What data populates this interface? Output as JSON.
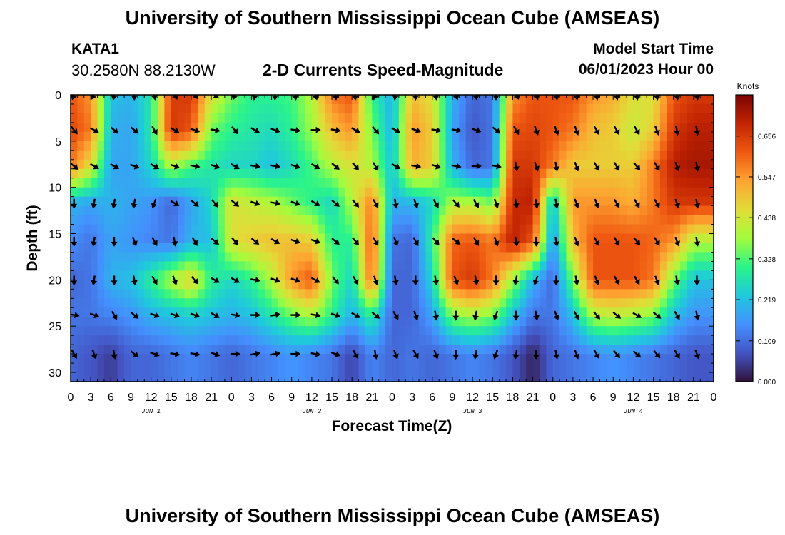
{
  "header": {
    "title": "University of Southern Mississippi Ocean Cube (AMSEAS)",
    "station_id": "KATA1",
    "station_coords": "30.2580N  88.2130W",
    "plot_title": "2-D Currents Speed-Magnitude",
    "model_start_label": "Model Start Time",
    "model_start_value": "06/01/2023 Hour 00"
  },
  "footer": {
    "title": "University of Southern Mississippi Ocean Cube (AMSEAS)"
  },
  "chart_data": {
    "type": "heatmap",
    "title": "2-D Currents Speed-Magnitude",
    "xlabel": "Forecast Time(Z)",
    "ylabel": "Depth (ft)",
    "xlim": [
      0,
      96
    ],
    "ylim": [
      31,
      0
    ],
    "x_tick_labels": [
      "0",
      "3",
      "6",
      "9",
      "12",
      "15",
      "18",
      "21",
      "0",
      "3",
      "6",
      "9",
      "12",
      "15",
      "18",
      "21",
      "0",
      "3",
      "6",
      "9",
      "12",
      "15",
      "18",
      "21",
      "0",
      "3",
      "6",
      "9",
      "12",
      "15",
      "18",
      "21",
      "0"
    ],
    "y_ticks": [
      0,
      5,
      10,
      15,
      20,
      25,
      30
    ],
    "day_labels": [
      "JUN 1",
      "JUN 2",
      "JUN 3",
      "JUN 4"
    ],
    "colorbar": {
      "title": "Knots",
      "ticks": [
        "0.000",
        "0.109",
        "0.219",
        "0.328",
        "0.438",
        "0.547",
        "0.656"
      ],
      "range": [
        0,
        0.766
      ],
      "stops": [
        "#30123b",
        "#4454c4",
        "#4490fe",
        "#1fc9dd",
        "#2af48a",
        "#a4fc3c",
        "#e2dc38",
        "#fea331",
        "#ef5911",
        "#c22402",
        "#7a0403"
      ]
    },
    "depths_ft": [
      0,
      3.8,
      7.7,
      11.7,
      15.8,
      20.0,
      23.8,
      28.0
    ],
    "times_h": [
      0,
      3,
      6,
      9,
      12,
      15,
      18,
      21,
      24,
      27,
      30,
      33,
      36,
      39,
      42,
      45,
      48,
      51,
      54,
      57,
      60,
      63,
      66,
      69,
      72,
      75,
      78,
      81,
      84,
      87,
      90,
      93
    ],
    "speed_knots": [
      [
        0.62,
        0.55,
        0.22,
        0.2,
        0.28,
        0.65,
        0.66,
        0.45,
        0.35,
        0.3,
        0.3,
        0.32,
        0.4,
        0.58,
        0.62,
        0.3,
        0.2,
        0.5,
        0.45,
        0.2,
        0.1,
        0.12,
        0.55,
        0.62,
        0.62,
        0.62,
        0.55,
        0.52,
        0.45,
        0.45,
        0.62,
        0.66
      ],
      [
        0.64,
        0.58,
        0.2,
        0.18,
        0.28,
        0.66,
        0.62,
        0.35,
        0.3,
        0.28,
        0.26,
        0.3,
        0.38,
        0.5,
        0.55,
        0.35,
        0.2,
        0.55,
        0.48,
        0.18,
        0.08,
        0.12,
        0.62,
        0.64,
        0.62,
        0.58,
        0.5,
        0.48,
        0.42,
        0.48,
        0.66,
        0.7
      ],
      [
        0.58,
        0.45,
        0.18,
        0.18,
        0.25,
        0.4,
        0.32,
        0.28,
        0.25,
        0.25,
        0.22,
        0.26,
        0.32,
        0.4,
        0.45,
        0.4,
        0.22,
        0.52,
        0.48,
        0.2,
        0.1,
        0.12,
        0.66,
        0.66,
        0.58,
        0.48,
        0.48,
        0.48,
        0.48,
        0.58,
        0.7,
        0.72
      ],
      [
        0.2,
        0.18,
        0.2,
        0.18,
        0.16,
        0.1,
        0.18,
        0.25,
        0.45,
        0.42,
        0.4,
        0.35,
        0.3,
        0.25,
        0.4,
        0.58,
        0.2,
        0.2,
        0.25,
        0.4,
        0.4,
        0.35,
        0.68,
        0.7,
        0.2,
        0.55,
        0.55,
        0.55,
        0.52,
        0.58,
        0.66,
        0.66
      ],
      [
        0.15,
        0.12,
        0.18,
        0.16,
        0.14,
        0.12,
        0.2,
        0.22,
        0.45,
        0.48,
        0.5,
        0.5,
        0.48,
        0.3,
        0.3,
        0.62,
        0.12,
        0.1,
        0.3,
        0.6,
        0.62,
        0.58,
        0.7,
        0.62,
        0.15,
        0.5,
        0.62,
        0.62,
        0.62,
        0.6,
        0.55,
        0.4
      ],
      [
        0.1,
        0.12,
        0.2,
        0.22,
        0.3,
        0.4,
        0.48,
        0.3,
        0.25,
        0.3,
        0.4,
        0.55,
        0.62,
        0.35,
        0.25,
        0.6,
        0.1,
        0.1,
        0.25,
        0.62,
        0.66,
        0.58,
        0.38,
        0.2,
        0.1,
        0.35,
        0.62,
        0.62,
        0.62,
        0.58,
        0.35,
        0.22
      ],
      [
        0.12,
        0.12,
        0.14,
        0.16,
        0.2,
        0.22,
        0.24,
        0.22,
        0.2,
        0.22,
        0.28,
        0.35,
        0.4,
        0.3,
        0.2,
        0.3,
        0.1,
        0.1,
        0.18,
        0.36,
        0.4,
        0.36,
        0.22,
        0.12,
        0.12,
        0.22,
        0.4,
        0.42,
        0.4,
        0.36,
        0.22,
        0.16
      ],
      [
        0.1,
        0.08,
        0.05,
        0.1,
        0.1,
        0.12,
        0.14,
        0.12,
        0.1,
        0.12,
        0.14,
        0.16,
        0.14,
        0.12,
        0.06,
        0.14,
        0.1,
        0.12,
        0.1,
        0.12,
        0.14,
        0.12,
        0.08,
        0.02,
        0.1,
        0.12,
        0.14,
        0.16,
        0.14,
        0.12,
        0.1,
        0.08
      ]
    ],
    "arrow_dir_deg": [
      [
        200,
        210,
        190,
        180,
        170,
        150,
        140,
        130,
        200,
        190,
        180,
        170,
        160,
        170,
        180,
        200,
        190,
        180,
        170,
        160,
        170,
        180,
        150,
        160,
        170,
        170,
        170,
        170,
        170,
        170,
        170,
        170
      ],
      [
        140,
        120,
        130,
        130,
        150,
        120,
        110,
        100,
        140,
        120,
        110,
        100,
        90,
        100,
        120,
        140,
        120,
        110,
        100,
        100,
        110,
        130,
        150,
        160,
        160,
        160,
        150,
        150,
        150,
        160,
        170,
        170
      ],
      [
        130,
        120,
        120,
        110,
        120,
        110,
        100,
        110,
        120,
        100,
        100,
        110,
        120,
        130,
        140,
        150,
        120,
        100,
        110,
        100,
        90,
        100,
        170,
        160,
        170,
        160,
        150,
        150,
        140,
        150,
        160,
        170
      ],
      [
        180,
        190,
        190,
        190,
        200,
        120,
        130,
        140,
        130,
        110,
        100,
        110,
        120,
        130,
        140,
        150,
        170,
        160,
        150,
        140,
        150,
        160,
        170,
        170,
        170,
        160,
        160,
        150,
        150,
        150,
        160,
        170
      ],
      [
        180,
        190,
        180,
        160,
        150,
        170,
        150,
        130,
        140,
        130,
        120,
        110,
        110,
        130,
        140,
        150,
        160,
        150,
        140,
        130,
        150,
        160,
        170,
        180,
        170,
        160,
        150,
        150,
        140,
        150,
        160,
        170
      ],
      [
        180,
        190,
        180,
        170,
        150,
        160,
        140,
        120,
        120,
        100,
        110,
        110,
        120,
        140,
        150,
        160,
        170,
        180,
        170,
        160,
        170,
        180,
        190,
        200,
        180,
        170,
        160,
        150,
        150,
        160,
        170,
        180
      ],
      [
        100,
        110,
        150,
        130,
        110,
        110,
        110,
        120,
        100,
        90,
        80,
        90,
        100,
        110,
        120,
        130,
        150,
        160,
        170,
        180,
        190,
        200,
        180,
        170,
        160,
        150,
        140,
        130,
        120,
        130,
        150,
        170
      ],
      [
        150,
        160,
        170,
        130,
        110,
        100,
        100,
        110,
        90,
        80,
        80,
        90,
        100,
        110,
        150,
        170,
        160,
        150,
        160,
        180,
        190,
        200,
        190,
        180,
        170,
        160,
        150,
        140,
        130,
        140,
        150,
        160
      ]
    ]
  }
}
